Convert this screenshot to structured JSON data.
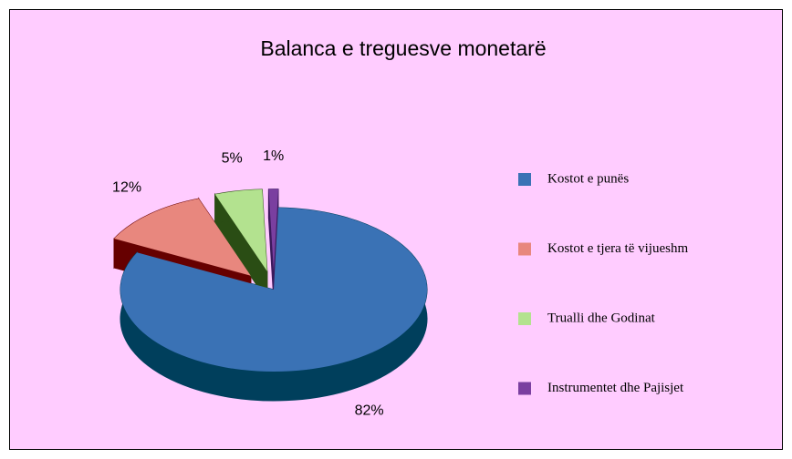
{
  "chart_data": {
    "type": "pie",
    "title": "Balanca e treguesve monetarë",
    "categories": [
      "Kostot e punës",
      "Kostot e tjera të vijueshm",
      "Trualli dhe Godinat",
      "Instrumentet dhe Pajisjet"
    ],
    "values": [
      82,
      12,
      5,
      1
    ],
    "value_labels": [
      "82%",
      "12%",
      "5%",
      "1%"
    ],
    "colors": [
      "#3a72b5",
      "#e8877e",
      "#b3e28f",
      "#7a3fa0"
    ],
    "side_colors": [
      "#003f5c",
      "#660000",
      "#2a4d14",
      "#3c1a5c"
    ],
    "legend": "right"
  }
}
